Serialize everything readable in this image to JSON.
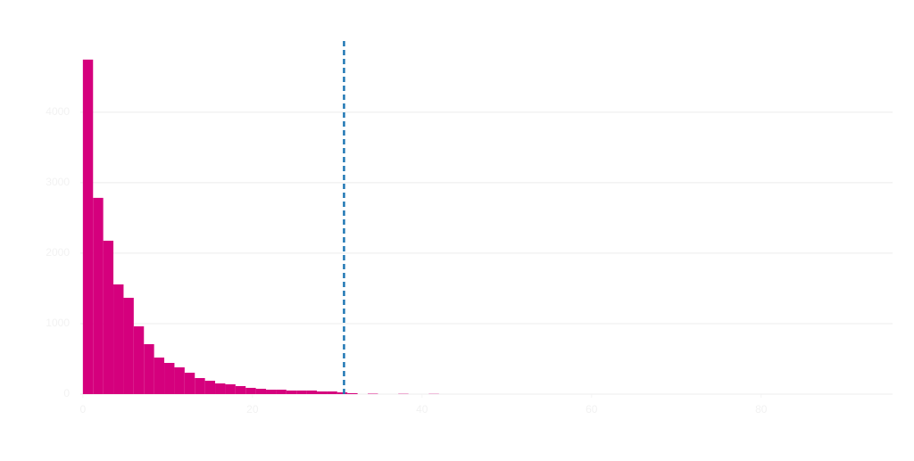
{
  "chart_data": {
    "type": "histogram",
    "bins": [
      0,
      1.2,
      2.4,
      3.6,
      4.8,
      6,
      7.2,
      8.4,
      9.6,
      10.8,
      12,
      13.2,
      14.4,
      15.6,
      16.8,
      18,
      19.2,
      20.4,
      21.6,
      22.8,
      24,
      25.2,
      26.4,
      27.6,
      28.8,
      30,
      31.2,
      32.4,
      33.6,
      34.8,
      36,
      37.2,
      38.4,
      39.6,
      40.8,
      42,
      43.2
    ],
    "values": [
      4747,
      2785,
      2177,
      1557,
      1367,
      962,
      709,
      519,
      443,
      380,
      304,
      228,
      190,
      152,
      139,
      114,
      89,
      76,
      63,
      63,
      51,
      51,
      51,
      38,
      38,
      25,
      13,
      0,
      6,
      0,
      0,
      4,
      0,
      0,
      3,
      0
    ],
    "color": "#d5007d",
    "vline": 30.8,
    "vline_color": "#1f77b4",
    "xlim": [
      -0.3,
      95.5
    ],
    "xticks": [
      0,
      20,
      40,
      60,
      80
    ],
    "ylim": [
      0,
      4960
    ],
    "yticks": [
      0,
      1000,
      2000,
      3000,
      4000
    ],
    "grid": true
  }
}
